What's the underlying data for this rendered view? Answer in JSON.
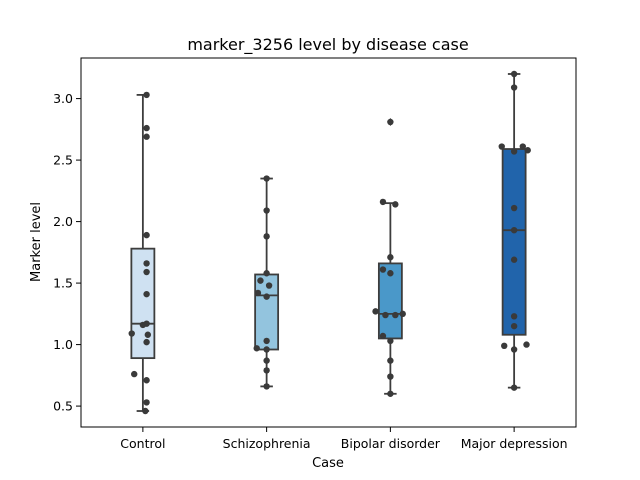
{
  "chart_data": {
    "type": "box",
    "title": "marker_3256 level by disease case",
    "xlabel": "Case",
    "ylabel": "Marker level",
    "ylim": [
      0.33,
      3.33
    ],
    "yticks": [
      0.5,
      1.0,
      1.5,
      2.0,
      2.5,
      3.0
    ],
    "ytick_labels": [
      "0.5",
      "1.0",
      "1.5",
      "2.0",
      "2.5",
      "3.0"
    ],
    "categories": [
      "Control",
      "Schizophrenia",
      "Bipolar disorder",
      "Major depression"
    ],
    "colors": [
      "#cfe1f2",
      "#93c4de",
      "#4a98c9",
      "#2164ab"
    ],
    "grid": false,
    "boxes": [
      {
        "name": "Control",
        "whisker_low": 0.46,
        "q1": 0.89,
        "median": 1.17,
        "q3": 1.78,
        "whisker_high": 3.03,
        "outliers": []
      },
      {
        "name": "Schizophrenia",
        "whisker_low": 0.66,
        "q1": 0.96,
        "median": 1.4,
        "q3": 1.57,
        "whisker_high": 2.35,
        "outliers": []
      },
      {
        "name": "Bipolar disorder",
        "whisker_low": 0.6,
        "q1": 1.05,
        "median": 1.25,
        "q3": 1.66,
        "whisker_high": 2.15,
        "outliers": [
          2.81
        ]
      },
      {
        "name": "Major depression",
        "whisker_low": 0.65,
        "q1": 1.08,
        "median": 1.93,
        "q3": 2.59,
        "whisker_high": 3.2,
        "outliers": []
      }
    ],
    "points": [
      {
        "category": 0,
        "values": [
          3.03,
          2.76,
          2.69,
          1.89,
          1.66,
          1.59,
          1.41,
          1.17,
          1.16,
          1.09,
          1.08,
          1.02,
          0.76,
          0.71,
          0.53,
          0.46
        ],
        "offsets": [
          0.03,
          0.03,
          0.03,
          0.03,
          0.03,
          0.03,
          0.03,
          0.03,
          0.0,
          -0.09,
          0.04,
          0.03,
          -0.07,
          0.03,
          0.03,
          0.02
        ]
      },
      {
        "category": 1,
        "values": [
          2.35,
          2.09,
          1.88,
          1.58,
          1.52,
          1.48,
          1.42,
          1.39,
          1.03,
          0.97,
          0.96,
          0.87,
          0.79,
          0.66
        ],
        "offsets": [
          0.0,
          0.0,
          0.0,
          0.0,
          -0.05,
          0.02,
          -0.07,
          0.0,
          0.0,
          -0.08,
          0.0,
          0.0,
          0.0,
          0.0
        ]
      },
      {
        "category": 2,
        "values": [
          2.81,
          2.16,
          2.14,
          1.71,
          1.61,
          1.58,
          1.27,
          1.25,
          1.24,
          1.24,
          1.07,
          1.03,
          0.87,
          0.74,
          0.6
        ],
        "offsets": [
          0.0,
          -0.06,
          0.04,
          0.0,
          -0.06,
          0.0,
          -0.12,
          0.1,
          -0.04,
          0.04,
          -0.06,
          0.0,
          0.0,
          0.0,
          0.0
        ]
      },
      {
        "category": 3,
        "values": [
          3.2,
          3.09,
          2.61,
          2.61,
          2.58,
          2.57,
          2.11,
          1.93,
          1.69,
          1.23,
          1.15,
          1.0,
          0.99,
          0.96,
          0.65
        ],
        "offsets": [
          0.0,
          0.0,
          -0.1,
          0.07,
          0.11,
          0.0,
          0.0,
          0.0,
          0.0,
          0.0,
          0.0,
          0.1,
          -0.08,
          0.0,
          0.0
        ]
      }
    ]
  }
}
